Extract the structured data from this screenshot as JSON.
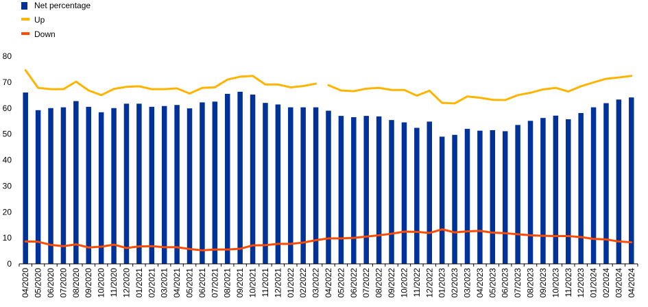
{
  "chart_data": {
    "type": "bar",
    "legend_position": "top-left",
    "grid": false,
    "ylim": [
      0,
      80
    ],
    "yticks": [
      0,
      10,
      20,
      30,
      40,
      50,
      60,
      70,
      80
    ],
    "categories": [
      "04/2020",
      "05/2020",
      "06/2020",
      "07/2020",
      "08/2020",
      "09/2020",
      "10/2020",
      "11/2020",
      "12/2020",
      "01/2021",
      "02/2021",
      "03/2021",
      "04/2021",
      "05/2021",
      "06/2021",
      "07/2021",
      "08/2021",
      "09/2021",
      "10/2021",
      "11/2021",
      "12/2021",
      "01/2022",
      "02/2022",
      "03/2022",
      "04/2022",
      "05/2022",
      "06/2022",
      "07/2022",
      "08/2022",
      "09/2022",
      "10/2022",
      "11/2022",
      "12/2022",
      "01/2023",
      "02/2023",
      "03/2023",
      "04/2023",
      "05/2023",
      "06/2023",
      "07/2023",
      "08/2023",
      "09/2023",
      "10/2023",
      "11/2023",
      "12/2023",
      "01/2024",
      "02/2024",
      "03/2024",
      "04/2024"
    ],
    "series": [
      {
        "name": "Net percentage",
        "kind": "bar",
        "color": "#003299",
        "values": [
          66.0,
          59.2,
          60.0,
          60.3,
          62.7,
          60.5,
          58.4,
          60.0,
          61.7,
          61.7,
          60.5,
          60.8,
          61.2,
          59.9,
          62.2,
          62.5,
          65.5,
          66.3,
          65.2,
          62.0,
          61.4,
          60.3,
          60.3,
          60.3,
          59.0,
          57.0,
          56.5,
          57.0,
          56.8,
          55.4,
          54.5,
          52.4,
          54.8,
          49.0,
          49.7,
          52.0,
          51.3,
          51.5,
          51.1,
          53.5,
          55.1,
          56.2,
          57.1,
          55.7,
          58.1,
          60.3,
          61.9,
          63.3,
          64.1
        ]
      },
      {
        "name": "Up",
        "kind": "line",
        "color": "#FFB400",
        "values": [
          74.6,
          67.8,
          67.3,
          67.3,
          70.2,
          66.8,
          65.0,
          67.4,
          68.2,
          68.4,
          67.3,
          67.3,
          67.6,
          65.6,
          67.8,
          68.0,
          71.0,
          72.1,
          72.4,
          69.1,
          69.1,
          68.0,
          68.5,
          69.4,
          68.8,
          66.8,
          66.5,
          67.5,
          67.8,
          67.0,
          67.0,
          64.8,
          66.7,
          62.0,
          61.8,
          64.5,
          64.0,
          63.2,
          63.1,
          65.0,
          65.9,
          67.2,
          67.8,
          66.4,
          68.4,
          69.9,
          71.3,
          71.8,
          72.4
        ],
        "break_after_index": 23
      },
      {
        "name": "Down",
        "kind": "line",
        "color": "#FF4B00",
        "values": [
          8.6,
          8.5,
          7.3,
          6.8,
          7.5,
          6.3,
          6.6,
          7.4,
          6.1,
          6.7,
          6.8,
          6.4,
          6.4,
          5.7,
          5.2,
          5.5,
          5.5,
          5.8,
          7.1,
          7.2,
          7.7,
          7.7,
          8.2,
          9.1,
          9.8,
          9.8,
          10.0,
          10.5,
          11.0,
          11.6,
          12.4,
          12.3,
          11.9,
          13.3,
          12.1,
          12.5,
          12.7,
          12.0,
          11.8,
          11.4,
          11.0,
          10.8,
          10.7,
          10.7,
          10.3,
          9.6,
          9.4,
          8.6,
          8.3
        ]
      }
    ]
  }
}
